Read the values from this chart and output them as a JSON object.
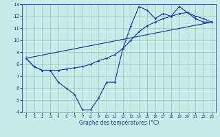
{
  "line1_x": [
    0,
    23
  ],
  "line1_y": [
    8.5,
    11.5
  ],
  "line2_x": [
    0,
    1,
    2,
    3,
    4,
    5,
    6,
    7,
    8,
    9,
    10,
    11,
    12,
    13,
    14,
    15,
    16,
    17,
    18,
    19,
    20,
    21,
    22,
    23
  ],
  "line2_y": [
    8.5,
    7.8,
    7.5,
    7.5,
    7.5,
    7.6,
    7.7,
    7.8,
    8.0,
    8.3,
    8.5,
    8.8,
    9.3,
    10.0,
    10.7,
    11.2,
    11.5,
    11.8,
    12.0,
    12.2,
    12.3,
    11.8,
    11.5,
    11.5
  ],
  "line3_x": [
    0,
    1,
    2,
    3,
    4,
    5,
    6,
    7,
    8,
    9,
    10,
    11,
    12,
    13,
    14,
    15,
    16,
    17,
    18,
    19,
    20,
    21,
    22,
    23
  ],
  "line3_y": [
    8.5,
    7.8,
    7.5,
    7.5,
    6.5,
    6.0,
    5.5,
    4.2,
    4.2,
    5.2,
    6.5,
    6.5,
    9.3,
    11.2,
    12.8,
    12.5,
    11.8,
    12.2,
    12.0,
    12.8,
    12.3,
    12.0,
    11.8,
    11.5
  ],
  "color": "#2244aa",
  "bg_color": "#c8ecea",
  "grid_color": "#99ccbb",
  "xlabel": "Graphe des températures (°C)",
  "xlim": [
    -0.5,
    23.5
  ],
  "ylim": [
    4,
    13
  ],
  "xticks": [
    0,
    1,
    2,
    3,
    4,
    5,
    6,
    7,
    8,
    9,
    10,
    11,
    12,
    13,
    14,
    15,
    16,
    17,
    18,
    19,
    20,
    21,
    22,
    23
  ],
  "yticks": [
    4,
    5,
    6,
    7,
    8,
    9,
    10,
    11,
    12,
    13
  ]
}
